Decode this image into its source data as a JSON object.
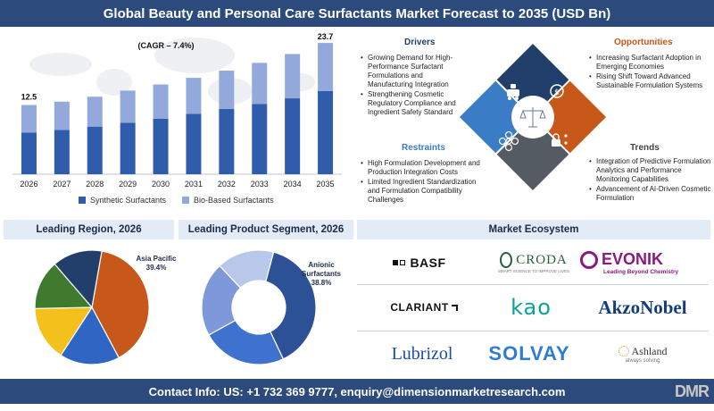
{
  "title": "Global Beauty and Personal Care Surfactants Market Forecast to 2035 (USD Bn)",
  "chart_data": [
    {
      "type": "bar",
      "stacked": true,
      "categories": [
        "2026",
        "2027",
        "2028",
        "2029",
        "2030",
        "2031",
        "2032",
        "2033",
        "2034",
        "2035"
      ],
      "series": [
        {
          "name": "Synthetic Surfactants",
          "color": "#2f5cab",
          "values": [
            7.5,
            8.0,
            8.6,
            9.3,
            10.0,
            10.9,
            11.8,
            12.7,
            13.7,
            15.0
          ]
        },
        {
          "name": "Bio-Based Surfactants",
          "color": "#93a9dc",
          "values": [
            5.0,
            5.1,
            5.4,
            5.8,
            6.2,
            6.5,
            6.9,
            7.4,
            8.0,
            8.7
          ]
        }
      ],
      "totals_labels": {
        "first": "12.5",
        "last": "23.7"
      },
      "annotation": "(CAGR – 7.4%)",
      "ylim": [
        0,
        25
      ],
      "grid": false
    },
    {
      "type": "pie",
      "title": "Leading Region, 2026",
      "slices": [
        {
          "label": "Asia Pacific",
          "value": 39.4,
          "color": "#c8581a"
        },
        {
          "label": "",
          "value": 17.0,
          "color": "#2f66c4"
        },
        {
          "label": "",
          "value": 15.5,
          "color": "#f4c01c"
        },
        {
          "label": "",
          "value": 14.0,
          "color": "#3f7a2e"
        },
        {
          "label": "",
          "value": 14.1,
          "color": "#213f6a"
        }
      ],
      "callout": {
        "name": "Asia Pacific",
        "value": "39.4%"
      }
    },
    {
      "type": "pie",
      "donut": true,
      "title": "Leading Product Segment, 2026",
      "slices": [
        {
          "label": "Anionic Surfactants",
          "value": 38.8,
          "color": "#2c5196"
        },
        {
          "label": "",
          "value": 24.0,
          "color": "#3f72cf"
        },
        {
          "label": "",
          "value": 21.0,
          "color": "#7e98da"
        },
        {
          "label": "",
          "value": 16.2,
          "color": "#b9c7ea"
        }
      ],
      "callout": {
        "name": "Anionic Surfactants",
        "value": "38.8%"
      }
    }
  ],
  "drivers": {
    "title": "Drivers",
    "items": [
      "Growing Demand for High-Performance Surfactant Formulations and Manufacturing Integration",
      "Strengthening Cosmetic Regulatory Compliance and Ingredient Safety Standard"
    ]
  },
  "opportunities": {
    "title": "Opportunities",
    "items": [
      "Increasing Surfactant Adoption in Emerging Economies",
      "Rising Shift Toward Advanced Sustainable Formulation Systems"
    ]
  },
  "restraints": {
    "title": "Restraints",
    "items": [
      "High Formulation Development and Production Integration Costs",
      "Limited Ingredient Standardization and Formulation Compatibility Challenges"
    ]
  },
  "trends": {
    "title": "Trends",
    "items": [
      "Integration of Predictive Formulation Analytics and Performance Monitoring Capabilities",
      "Advancement of AI-Driven Cosmetic Formulation"
    ]
  },
  "diamond_colors": {
    "top": "#213f6a",
    "right": "#c8581a",
    "bottom": "#555b63",
    "left": "#3a7dc6"
  },
  "headers": {
    "region": "Leading Region, 2026",
    "segment": "Leading Product Segment, 2026",
    "ecosystem": "Market Ecosystem"
  },
  "logos": {
    "basf": "BASF",
    "croda": "CRODA",
    "croda_tag": "SMART SCIENCE TO IMPROVE LIVES",
    "evonik": "EVONIK",
    "evonik_tag": "Leading Beyond Chemistry",
    "clariant": "CLARIANT",
    "kao": "KAO",
    "akzo": "AkzoNobel",
    "lubrizol": "Lubrizol",
    "solvay": "SOLVAY",
    "ashland": "Ashland",
    "ashland_tag": "always solving"
  },
  "footer": "Contact Info: US: +1 732 369 9777, enquiry@dimensionmarketresearch.com",
  "brand": "DMR"
}
